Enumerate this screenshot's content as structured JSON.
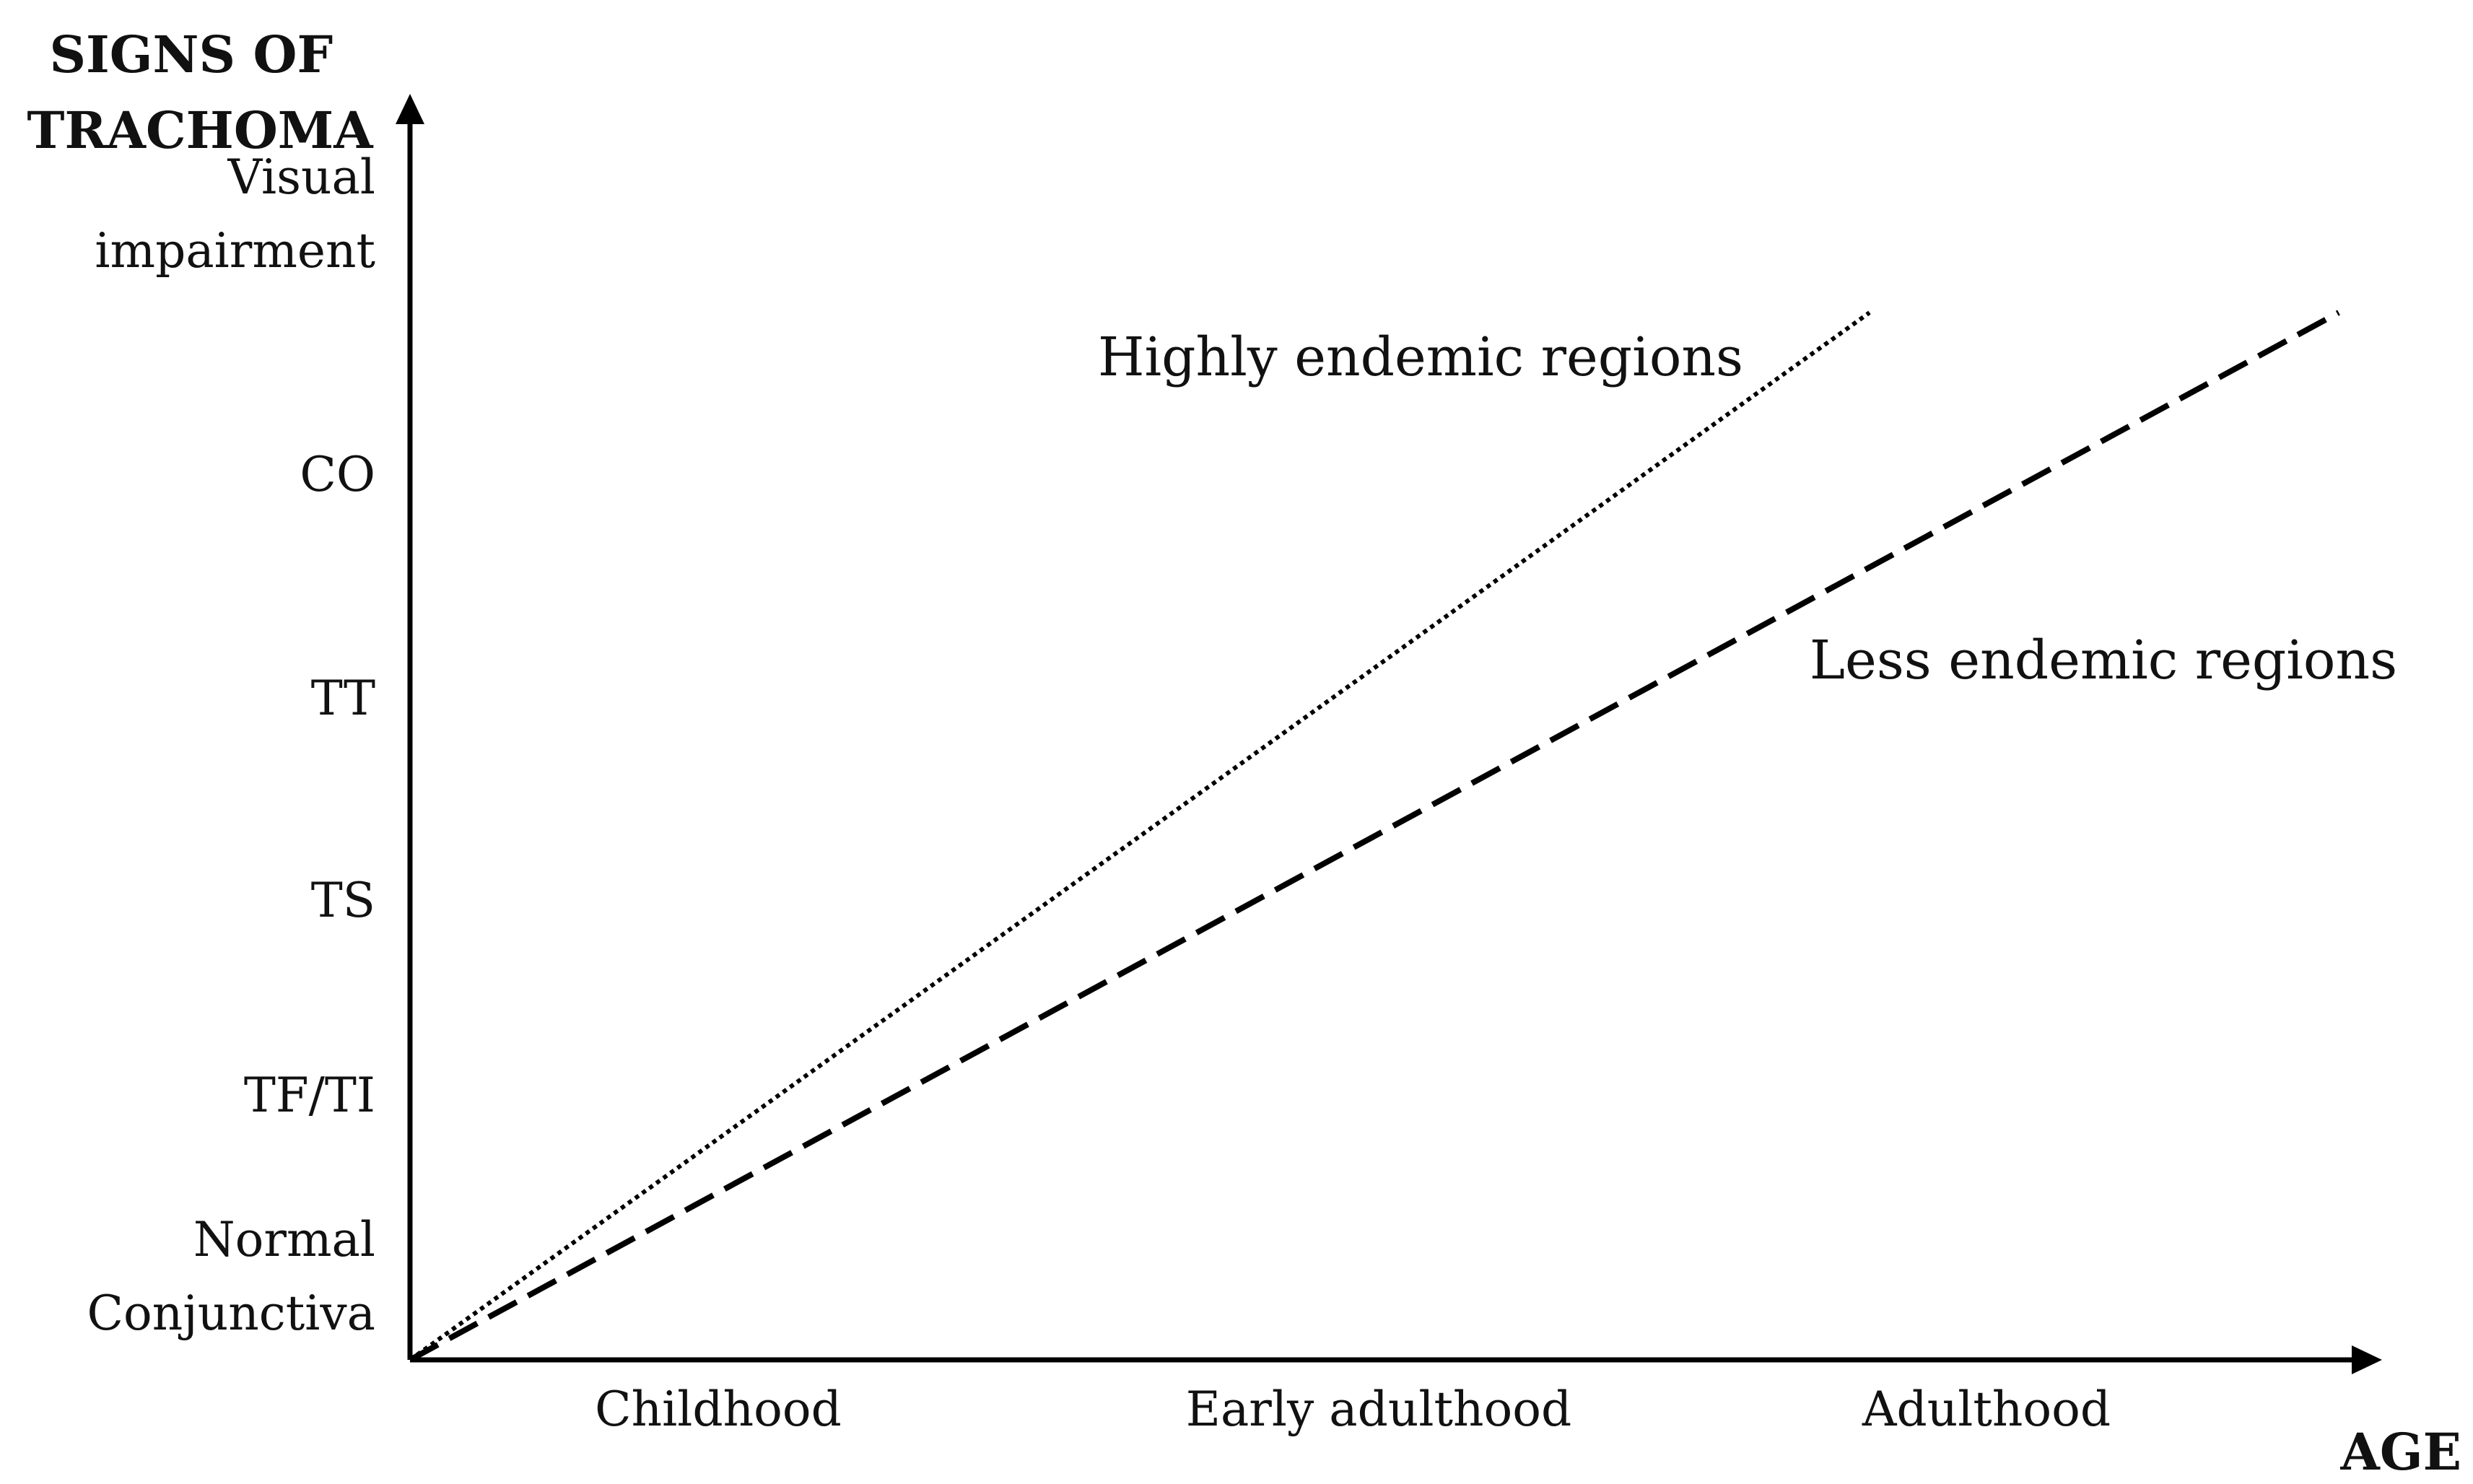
{
  "chart_data": {
    "type": "line",
    "ylabel": [
      "SIGNS OF",
      "TRACHOMA"
    ],
    "xlabel": "AGE",
    "y_levels": [
      {
        "lines": [
          "Normal",
          "Conjunctiva"
        ],
        "value": 0
      },
      {
        "lines": [
          "TF/TI"
        ],
        "value": 1
      },
      {
        "lines": [
          "TS"
        ],
        "value": 2
      },
      {
        "lines": [
          "TT"
        ],
        "value": 3
      },
      {
        "lines": [
          "CO"
        ],
        "value": 4
      },
      {
        "lines": [
          "Visual",
          "impairment"
        ],
        "value": 5
      }
    ],
    "x_categories": [
      {
        "label": "Childhood",
        "value": 1
      },
      {
        "label": "Early adulthood",
        "value": 2
      },
      {
        "label": "Adulthood",
        "value": 3
      }
    ],
    "series": [
      {
        "name": "Highly endemic regions",
        "style": "dotted",
        "points": [
          [
            0,
            0
          ],
          [
            2.45,
            5.4
          ]
        ]
      },
      {
        "name": "Less endemic regions",
        "style": "dashed",
        "points": [
          [
            0,
            0
          ],
          [
            3.25,
            5.4
          ]
        ]
      }
    ],
    "xlim": [
      0,
      3.6
    ],
    "ylim": [
      0,
      6.3
    ],
    "grid": false,
    "colors": {
      "lines": "#000000",
      "text": "#111111"
    }
  }
}
